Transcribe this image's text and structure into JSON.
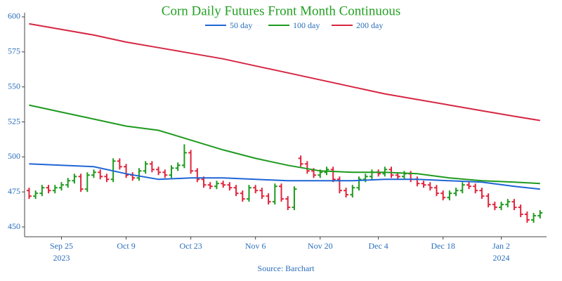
{
  "chart_data": {
    "type": "ohlc",
    "title": "Corn Daily Futures Front Month Continuous",
    "source": "Source: Barchart",
    "categories": [
      null,
      null,
      null,
      null,
      null,
      "Sep 25",
      null,
      null,
      null,
      null,
      null,
      null,
      null,
      null,
      null,
      "Oct 9",
      null,
      null,
      null,
      null,
      null,
      null,
      null,
      null,
      null,
      "Oct 23",
      null,
      null,
      null,
      null,
      null,
      null,
      null,
      null,
      null,
      "Nov 6",
      null,
      null,
      null,
      null,
      null,
      null,
      null,
      null,
      null,
      "Nov 20",
      null,
      null,
      null,
      null,
      null,
      null,
      null,
      null,
      "Dec 4",
      null,
      null,
      null,
      null,
      null,
      null,
      null,
      null,
      null,
      "Dec 18",
      null,
      null,
      null,
      null,
      null,
      null,
      null,
      null,
      "Jan 2",
      null,
      null,
      null,
      null,
      null,
      null
    ],
    "year_labels": [
      {
        "value": 5,
        "label": "2023"
      },
      {
        "value": 73,
        "label": "2024"
      }
    ],
    "xlim": [
      -0.7,
      80
    ],
    "ylim": [
      443,
      603
    ],
    "yticks": [
      450,
      475,
      500,
      525,
      550,
      575,
      600
    ],
    "up_color": "#1e9a1e",
    "down_color": "#e0243c",
    "open": [
      476,
      472,
      474,
      478,
      476,
      478,
      480,
      483,
      486,
      477,
      487,
      489,
      486,
      484,
      497,
      493,
      487,
      485,
      490,
      495,
      491,
      489,
      487,
      492,
      494,
      503,
      490,
      484,
      480,
      479,
      481,
      480,
      478,
      474,
      470,
      478,
      476,
      472,
      468,
      479,
      470,
      464,
      499,
      495,
      490,
      487,
      489,
      491,
      484,
      476,
      473,
      478,
      484,
      486,
      489,
      488,
      491,
      487,
      486,
      488,
      484,
      481,
      480,
      478,
      474,
      471,
      474,
      476,
      480,
      479,
      476,
      472,
      466,
      464,
      466,
      468,
      464,
      459,
      455,
      458
    ],
    "high": [
      478,
      476,
      480,
      480,
      480,
      482,
      485,
      488,
      488,
      489,
      491,
      491,
      488,
      499,
      499,
      495,
      489,
      492,
      497,
      497,
      493,
      491,
      494,
      496,
      509,
      505,
      492,
      486,
      482,
      483,
      483,
      482,
      480,
      476,
      480,
      480,
      478,
      474,
      481,
      481,
      472,
      479,
      501,
      497,
      492,
      491,
      493,
      493,
      486,
      478,
      480,
      486,
      488,
      491,
      491,
      493,
      493,
      489,
      490,
      490,
      486,
      483,
      482,
      480,
      476,
      476,
      478,
      482,
      482,
      481,
      478,
      474,
      468,
      468,
      470,
      470,
      466,
      461,
      460,
      462
    ],
    "low": [
      470,
      470,
      472,
      474,
      474,
      476,
      478,
      481,
      475,
      475,
      485,
      484,
      482,
      482,
      491,
      485,
      483,
      483,
      488,
      489,
      487,
      485,
      485,
      490,
      492,
      488,
      482,
      478,
      477,
      477,
      478,
      476,
      472,
      468,
      468,
      474,
      470,
      466,
      466,
      468,
      462,
      462,
      493,
      488,
      485,
      485,
      487,
      482,
      474,
      471,
      471,
      476,
      482,
      484,
      486,
      486,
      485,
      484,
      484,
      482,
      479,
      478,
      476,
      472,
      469,
      469,
      472,
      474,
      477,
      474,
      470,
      464,
      462,
      462,
      464,
      462,
      457,
      453,
      453,
      456
    ],
    "close": [
      472,
      474,
      478,
      476,
      478,
      480,
      483,
      486,
      477,
      487,
      489,
      486,
      484,
      497,
      493,
      487,
      485,
      490,
      495,
      491,
      489,
      487,
      492,
      494,
      503,
      490,
      484,
      480,
      479,
      481,
      480,
      478,
      474,
      470,
      478,
      476,
      472,
      468,
      479,
      470,
      464,
      477,
      495,
      490,
      487,
      489,
      491,
      484,
      476,
      473,
      478,
      484,
      486,
      489,
      488,
      491,
      487,
      486,
      488,
      484,
      481,
      480,
      478,
      474,
      471,
      474,
      476,
      480,
      479,
      476,
      472,
      466,
      464,
      466,
      468,
      464,
      459,
      455,
      458,
      460
    ],
    "series": [
      {
        "name": "50 day",
        "color": "#1f66d6",
        "x": [
          0,
          5,
          10,
          15,
          20,
          25,
          30,
          35,
          40,
          45,
          50,
          55,
          60,
          65,
          70,
          75,
          79
        ],
        "values": [
          495,
          494,
          493,
          488,
          484,
          485,
          485,
          484,
          483,
          483,
          483,
          484,
          484,
          483,
          482,
          479,
          477
        ]
      },
      {
        "name": "100 day",
        "color": "#1e9a1e",
        "x": [
          0,
          5,
          10,
          15,
          20,
          25,
          30,
          35,
          40,
          45,
          50,
          55,
          60,
          65,
          70,
          75,
          79
        ],
        "values": [
          537,
          532,
          527,
          522,
          519,
          512,
          505,
          499,
          494,
          490,
          489,
          489,
          488,
          485,
          483,
          482,
          481
        ]
      },
      {
        "name": "200 day",
        "color": "#d62743",
        "x": [
          0,
          5,
          10,
          15,
          20,
          25,
          30,
          35,
          40,
          45,
          50,
          55,
          60,
          65,
          70,
          75,
          79
        ],
        "values": [
          595,
          591,
          587,
          582,
          578,
          574,
          570,
          565,
          560,
          555,
          550,
          545,
          541,
          537,
          533,
          529,
          526
        ]
      }
    ]
  }
}
